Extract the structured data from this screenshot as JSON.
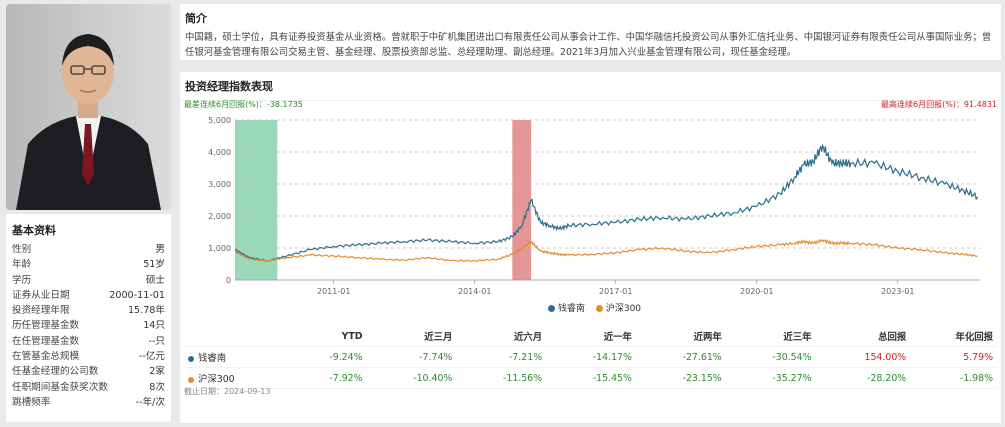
{
  "profile": {
    "title": "基本资料",
    "rows": [
      {
        "label": "性别",
        "value": "男"
      },
      {
        "label": "年龄",
        "value": "51岁"
      },
      {
        "label": "学历",
        "value": "硕士"
      },
      {
        "label": "证券从业日期",
        "value": "2000-11-01"
      },
      {
        "label": "投资经理年限",
        "value": "15.78年"
      },
      {
        "label": "历任管理基金数",
        "value": "14只"
      },
      {
        "label": "在任管理基金数",
        "value": "--只"
      },
      {
        "label": "在管基金总规模",
        "value": "--亿元"
      },
      {
        "label": "任基金经理的公司数",
        "value": "2家"
      },
      {
        "label": "任职期间基金获奖次数",
        "value": "8次"
      },
      {
        "label": "跳槽频率",
        "value": "--年/次"
      }
    ]
  },
  "intro": {
    "title": "简介",
    "text": "中国籍，硕士学位，具有证券投资基金从业资格。曾就职于中矿机集团进出口有限责任公司从事会计工作、中国华融信托投资公司从事外汇信托业务、中国银河证券有限责任公司从事国际业务；曾任银河基金管理有限公司交易主管、基金经理、股票投资部总监、总经理助理、副总经理。2021年3月加入兴业基金管理有限公司，现任基金经理。"
  },
  "perf": {
    "title": "投资经理指数表现",
    "min_label": "最差连续6月回报(%)：-38.1735",
    "max_label": "最高连续6月回报(%)：91.4831",
    "date_note": "截止日期：2024-09-13"
  },
  "colors": {
    "manager": "#2b6e8f",
    "index": "#e88a2a",
    "worst_band": "#6fc79a",
    "best_band": "#d96a6a"
  },
  "chart_data": {
    "type": "line",
    "ylim": [
      0,
      5000
    ],
    "yticks": [
      "0",
      "1,000",
      "2,000",
      "3,000",
      "4,000",
      "5,000"
    ],
    "xticks": [
      "2011-01",
      "2014-01",
      "2017-01",
      "2020-01",
      "2023-01"
    ],
    "series": [
      {
        "name": "钱睿南",
        "x": [
          2008.9,
          2009.2,
          2009.6,
          2010.0,
          2010.5,
          2011.0,
          2011.5,
          2012.0,
          2012.5,
          2013.0,
          2013.5,
          2014.0,
          2014.5,
          2014.8,
          2015.0,
          2015.2,
          2015.4,
          2015.6,
          2015.8,
          2016.0,
          2016.5,
          2017.0,
          2017.5,
          2018.0,
          2018.5,
          2019.0,
          2019.5,
          2020.0,
          2020.5,
          2020.8,
          2021.0,
          2021.2,
          2021.4,
          2021.6,
          2021.8,
          2022.0,
          2022.5,
          2023.0,
          2023.5,
          2024.0,
          2024.4,
          2024.7
        ],
        "values": [
          950,
          700,
          600,
          750,
          950,
          1050,
          1100,
          1150,
          1200,
          1250,
          1200,
          1150,
          1200,
          1350,
          1700,
          2500,
          1800,
          1700,
          1600,
          1700,
          1750,
          1800,
          1900,
          1950,
          1900,
          2000,
          2100,
          2300,
          2700,
          3200,
          3600,
          3700,
          4200,
          3650,
          3650,
          3650,
          3650,
          3400,
          3200,
          3000,
          2800,
          2600
        ]
      },
      {
        "name": "沪深300",
        "x": [
          2008.9,
          2009.2,
          2009.6,
          2010.0,
          2010.5,
          2011.0,
          2011.5,
          2012.0,
          2012.5,
          2013.0,
          2013.5,
          2014.0,
          2014.5,
          2014.8,
          2015.0,
          2015.2,
          2015.4,
          2015.6,
          2015.8,
          2016.0,
          2016.5,
          2017.0,
          2017.5,
          2018.0,
          2018.5,
          2019.0,
          2019.5,
          2020.0,
          2020.5,
          2020.8,
          2021.0,
          2021.2,
          2021.4,
          2021.6,
          2021.8,
          2022.0,
          2022.5,
          2023.0,
          2023.5,
          2024.0,
          2024.4,
          2024.7
        ],
        "values": [
          900,
          650,
          600,
          700,
          780,
          750,
          700,
          650,
          620,
          700,
          600,
          600,
          650,
          800,
          1000,
          1200,
          900,
          850,
          800,
          780,
          800,
          850,
          950,
          1000,
          900,
          850,
          950,
          1050,
          1100,
          1150,
          1200,
          1150,
          1250,
          1150,
          1150,
          1150,
          1100,
          1000,
          950,
          850,
          800,
          750
        ]
      }
    ],
    "bands": [
      {
        "type": "worst",
        "x": [
          2008.9,
          2009.8
        ]
      },
      {
        "type": "best",
        "x": [
          2014.8,
          2015.2
        ]
      }
    ]
  },
  "table": {
    "headers": [
      "",
      "YTD",
      "近三月",
      "近六月",
      "近一年",
      "近两年",
      "近三年",
      "总回报",
      "年化回报"
    ],
    "rows": [
      {
        "name": "钱睿南",
        "color": "#2b6e8f",
        "cells": [
          "-9.24%",
          "-7.74%",
          "-7.21%",
          "-14.17%",
          "-27.61%",
          "-30.54%",
          "154.00%",
          "5.79%"
        ]
      },
      {
        "name": "沪深300",
        "color": "#e88a2a",
        "cells": [
          "-7.92%",
          "-10.40%",
          "-11.56%",
          "-15.45%",
          "-23.15%",
          "-35.27%",
          "-28.20%",
          "-1.98%"
        ]
      }
    ]
  }
}
